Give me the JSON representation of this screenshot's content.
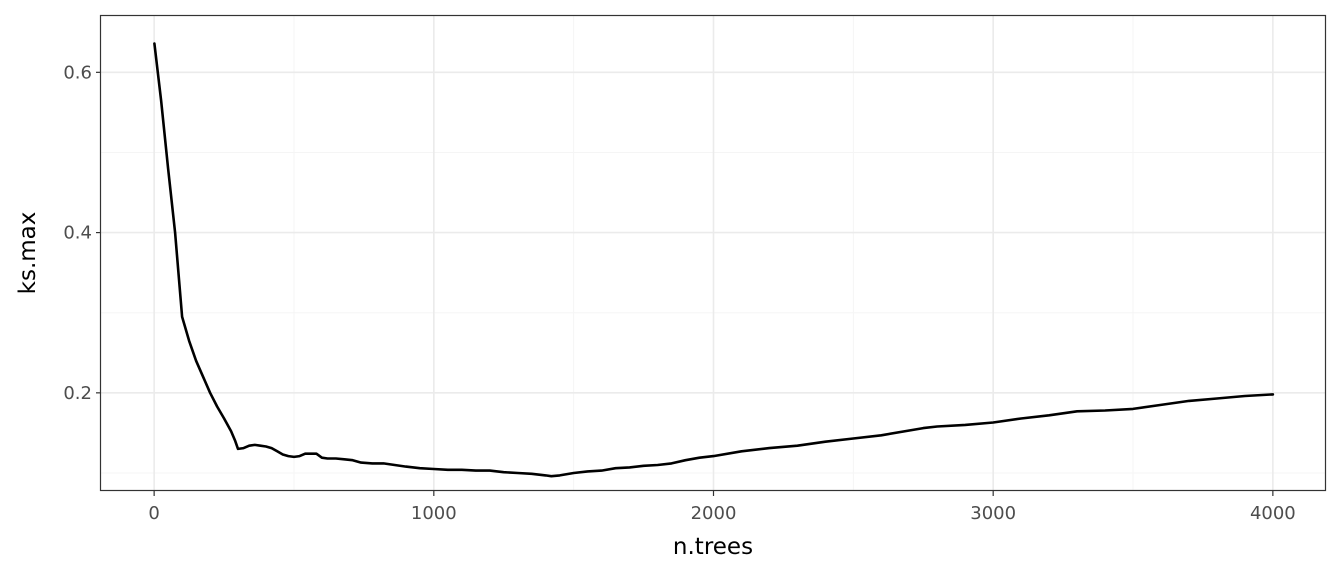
{
  "chart_data": {
    "type": "line",
    "xlabel": "n.trees",
    "ylabel": "ks.max",
    "xlim": [
      -190,
      4190
    ],
    "ylim": [
      0.0775,
      0.6703
    ],
    "x_ticks": [
      0,
      1000,
      2000,
      3000,
      4000
    ],
    "x_tick_labels": [
      "0",
      "1000",
      "2000",
      "3000",
      "4000"
    ],
    "x_minor_ticks": [
      500,
      1500,
      2500,
      3500
    ],
    "y_ticks": [
      0.2,
      0.4,
      0.6
    ],
    "y_tick_labels": [
      "0.2",
      "0.4",
      "0.6"
    ],
    "y_minor_ticks": [
      0.1,
      0.3,
      0.5
    ],
    "grid": true,
    "theme": "bw",
    "colors": {
      "line": "#000000",
      "grid_major": "#ebebeb",
      "grid_minor": "#f5f5f5",
      "panel_border": "#333333"
    },
    "series": [
      {
        "points": [
          [
            1,
            0.636
          ],
          [
            25,
            0.565
          ],
          [
            50,
            0.48
          ],
          [
            75,
            0.4
          ],
          [
            100,
            0.295
          ],
          [
            125,
            0.265
          ],
          [
            150,
            0.24
          ],
          [
            175,
            0.22
          ],
          [
            200,
            0.2
          ],
          [
            225,
            0.183
          ],
          [
            250,
            0.168
          ],
          [
            275,
            0.152
          ],
          [
            290,
            0.14
          ],
          [
            300,
            0.13
          ],
          [
            320,
            0.131
          ],
          [
            340,
            0.134
          ],
          [
            360,
            0.135
          ],
          [
            380,
            0.134
          ],
          [
            400,
            0.133
          ],
          [
            420,
            0.131
          ],
          [
            440,
            0.127
          ],
          [
            460,
            0.123
          ],
          [
            480,
            0.121
          ],
          [
            500,
            0.12
          ],
          [
            520,
            0.121
          ],
          [
            540,
            0.124
          ],
          [
            560,
            0.124
          ],
          [
            580,
            0.124
          ],
          [
            600,
            0.119
          ],
          [
            620,
            0.118
          ],
          [
            650,
            0.118
          ],
          [
            680,
            0.117
          ],
          [
            710,
            0.116
          ],
          [
            740,
            0.113
          ],
          [
            780,
            0.112
          ],
          [
            820,
            0.112
          ],
          [
            860,
            0.11
          ],
          [
            900,
            0.108
          ],
          [
            950,
            0.106
          ],
          [
            1000,
            0.105
          ],
          [
            1050,
            0.104
          ],
          [
            1100,
            0.104
          ],
          [
            1150,
            0.103
          ],
          [
            1200,
            0.103
          ],
          [
            1250,
            0.101
          ],
          [
            1300,
            0.1
          ],
          [
            1350,
            0.099
          ],
          [
            1400,
            0.097
          ],
          [
            1420,
            0.096
          ],
          [
            1450,
            0.097
          ],
          [
            1500,
            0.1
          ],
          [
            1550,
            0.102
          ],
          [
            1600,
            0.103
          ],
          [
            1650,
            0.106
          ],
          [
            1700,
            0.107
          ],
          [
            1750,
            0.109
          ],
          [
            1800,
            0.11
          ],
          [
            1850,
            0.112
          ],
          [
            1900,
            0.116
          ],
          [
            1950,
            0.119
          ],
          [
            2000,
            0.121
          ],
          [
            2100,
            0.127
          ],
          [
            2200,
            0.131
          ],
          [
            2300,
            0.134
          ],
          [
            2400,
            0.139
          ],
          [
            2500,
            0.143
          ],
          [
            2600,
            0.147
          ],
          [
            2700,
            0.153
          ],
          [
            2750,
            0.156
          ],
          [
            2800,
            0.158
          ],
          [
            2900,
            0.16
          ],
          [
            3000,
            0.163
          ],
          [
            3100,
            0.168
          ],
          [
            3200,
            0.172
          ],
          [
            3300,
            0.177
          ],
          [
            3400,
            0.178
          ],
          [
            3500,
            0.18
          ],
          [
            3600,
            0.185
          ],
          [
            3700,
            0.19
          ],
          [
            3800,
            0.193
          ],
          [
            3900,
            0.196
          ],
          [
            4000,
            0.198
          ]
        ]
      }
    ]
  }
}
